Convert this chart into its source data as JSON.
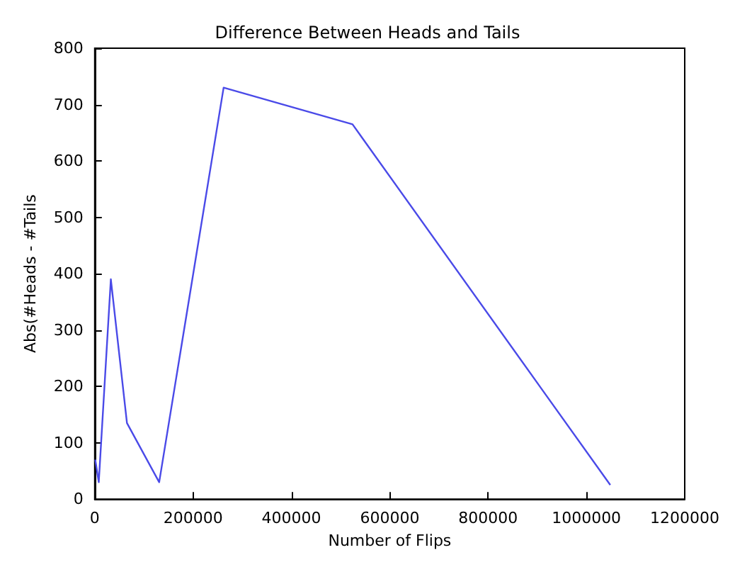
{
  "chart_data": {
    "type": "line",
    "title": "Difference Between Heads and Tails",
    "xlabel": "Number of Flips",
    "ylabel": "Abs(#Heads - #Tails",
    "x": [
      1024,
      8192,
      32768,
      65536,
      131072,
      262144,
      524288,
      1048576
    ],
    "series": [
      {
        "color": "#4a4ae8",
        "values": [
          70,
          30,
          390,
          135,
          30,
          730,
          665,
          25
        ]
      }
    ],
    "xlim": [
      0,
      1200000
    ],
    "xticks": [
      0,
      200000,
      400000,
      600000,
      800000,
      1000000,
      1200000
    ],
    "ylim": [
      0,
      800
    ],
    "yticks": [
      0,
      100,
      200,
      300,
      400,
      500,
      600,
      700,
      800
    ],
    "grid": false,
    "marker": "none",
    "line_style": "solid"
  }
}
